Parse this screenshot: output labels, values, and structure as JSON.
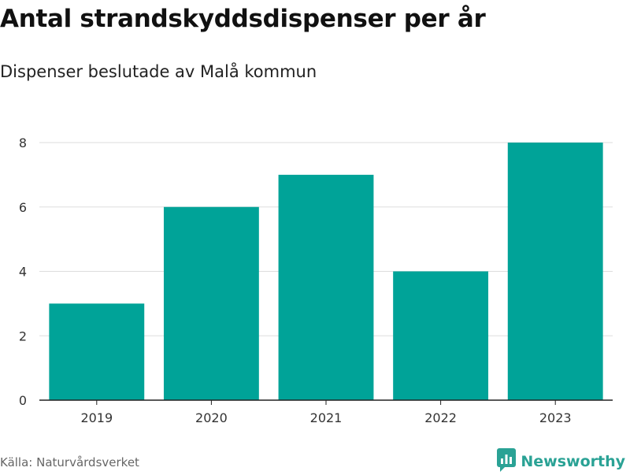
{
  "chart_data": {
    "type": "bar",
    "title": "Antal strandskyddsdispenser per år",
    "subtitle": "Dispenser beslutade av Malå kommun",
    "categories": [
      "2019",
      "2020",
      "2021",
      "2022",
      "2023"
    ],
    "values": [
      3,
      6,
      7,
      4,
      8
    ],
    "ylim": [
      0,
      8
    ],
    "yticks": [
      0,
      2,
      4,
      6,
      8
    ],
    "grid": true,
    "bar_color": "#00a398"
  },
  "footer": {
    "source": "Källa: Naturvårdsverket",
    "brand": "Newsworthy",
    "brand_color": "#2aa295"
  }
}
